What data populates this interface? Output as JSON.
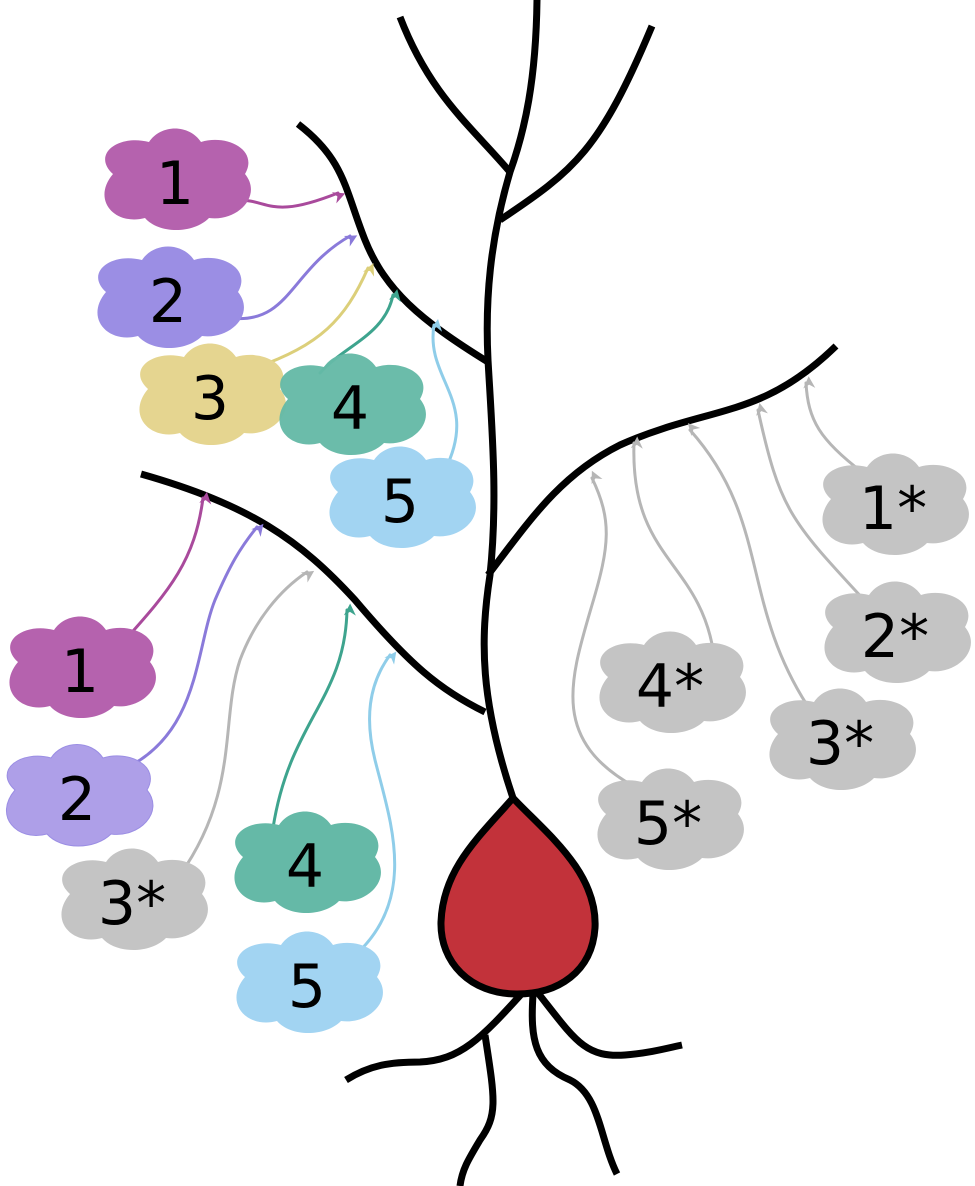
{
  "colors": {
    "magenta": "#b562ae",
    "violet": "#9b8ee4",
    "violet_light": "#ae9fe8",
    "yellow": "#e5d590",
    "teal": "#65b9a7",
    "light_blue": "#a2d4f2",
    "gray": "#c4c4c4",
    "soma": "#c2323a",
    "arrow_magenta": "#a94a9c",
    "arrow_violet": "#8a7ada",
    "arrow_yellow": "#dccf7a",
    "arrow_teal": "#3ea48e",
    "arrow_blue": "#8fcde9",
    "arrow_gray": "#b6b6b6"
  },
  "clouds": {
    "c_top_1": "1",
    "c_top_2": "2",
    "c_top_3": "3",
    "c_top_4": "4",
    "c_top_5": "5",
    "c_left_1": "1",
    "c_left_2": "2",
    "c_left_3": "3*",
    "c_left_4": "4",
    "c_left_5": "5",
    "c_right_1": "1*",
    "c_right_2": "2*",
    "c_right_3": "3*",
    "c_right_4": "4*",
    "c_right_5": "5*"
  }
}
